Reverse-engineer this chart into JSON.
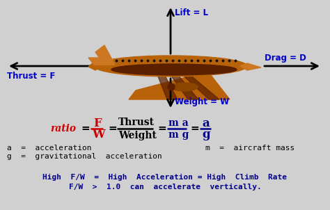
{
  "bg_color": "#d0d0d0",
  "blue": "#0000cc",
  "red": "#cc0000",
  "black": "#000000",
  "dark_blue": "#00008B",
  "plane_orange": "#b8620a",
  "plane_light": "#cc7722",
  "plane_dark": "#5a2000",
  "plane_brown": "#8b4500",
  "lift_label": "Lift = L",
  "thrust_label": "Thrust = F",
  "drag_label": "Drag = D",
  "weight_label": "Weight = W",
  "annotations_left": [
    "a  =  acceleration",
    "g  =  gravitational  acceleration"
  ],
  "annotation_right": "m  =  aircraft mass",
  "bottom_line1": "High  F/W  =  High  Acceleration = High  Climb  Rate",
  "bottom_line2": "F/W  >  1.0  can  accelerate  vertically."
}
